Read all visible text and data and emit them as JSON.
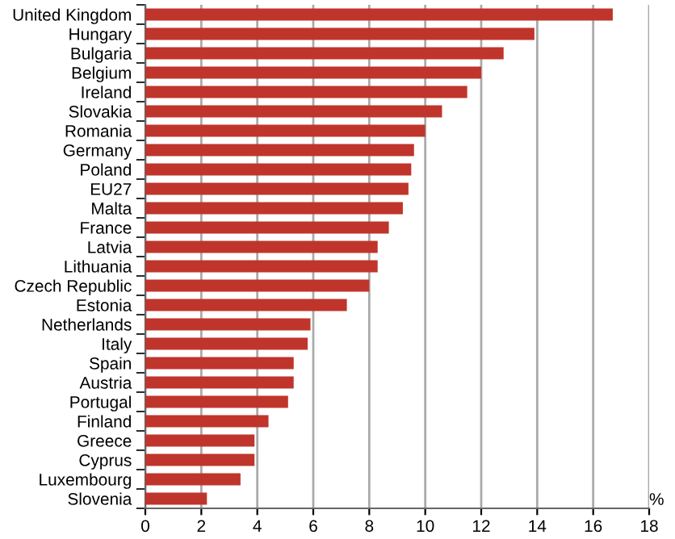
{
  "chart_data": {
    "type": "bar",
    "orientation": "horizontal",
    "xlabel": "%",
    "categories": [
      "United Kingdom",
      "Hungary",
      "Bulgaria",
      "Belgium",
      "Ireland",
      "Slovakia",
      "Romania",
      "Germany",
      "Poland",
      "EU27",
      "Malta",
      "France",
      "Latvia",
      "Lithuania",
      "Czech Republic",
      "Estonia",
      "Netherlands",
      "Italy",
      "Spain",
      "Austria",
      "Portugal",
      "Finland",
      "Greece",
      "Cyprus",
      "Luxembourg",
      "Slovenia"
    ],
    "values": [
      16.7,
      13.9,
      12.8,
      12.0,
      11.5,
      10.6,
      10.0,
      9.6,
      9.5,
      9.4,
      9.2,
      8.7,
      8.3,
      8.3,
      8.0,
      7.2,
      5.9,
      5.8,
      5.3,
      5.3,
      5.1,
      4.4,
      3.9,
      3.9,
      3.4,
      2.2
    ],
    "color": "#c0352b",
    "xlim": [
      0,
      18
    ],
    "xticks": [
      0,
      2,
      4,
      6,
      8,
      10,
      12,
      14,
      16,
      18
    ],
    "grid": "x"
  }
}
